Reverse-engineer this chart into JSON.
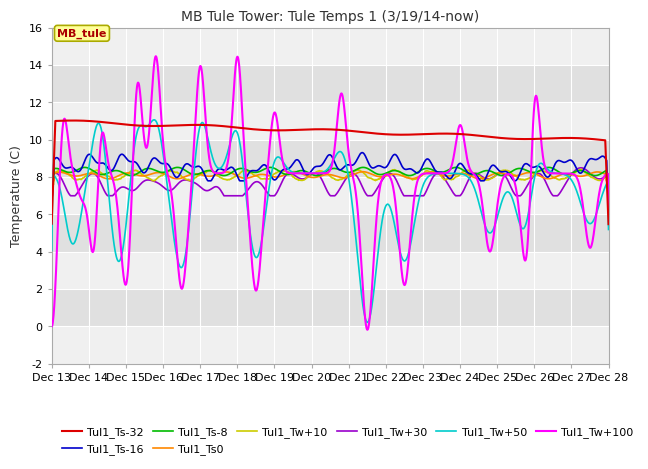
{
  "title": "MB Tule Tower: Tule Temps 1 (3/19/14-now)",
  "ylabel": "Temperature (C)",
  "ylim": [
    -2,
    16
  ],
  "yticks": [
    -2,
    0,
    2,
    4,
    6,
    8,
    10,
    12,
    14,
    16
  ],
  "x_start": 13,
  "x_end": 28,
  "xtick_positions": [
    13,
    14,
    15,
    16,
    17,
    18,
    19,
    20,
    21,
    22,
    23,
    24,
    25,
    26,
    27,
    28
  ],
  "xtick_labels": [
    "Dec 13",
    "Dec 14",
    "Dec 15",
    "Dec 16",
    "Dec 17",
    "Dec 18",
    "Dec 19",
    "Dec 20",
    "Dec 21",
    "Dec 22",
    "Dec 23",
    "Dec 24",
    "Dec 25",
    "Dec 26",
    "Dec 27",
    "Dec 28"
  ],
  "bg_color": "#ffffff",
  "plot_bg_light": "#f0f0f0",
  "plot_bg_dark": "#e0e0e0",
  "annotation_label": "MB_tule",
  "annotation_color": "#aa0000",
  "annotation_bg": "#ffff99",
  "annotation_edge": "#aaaa00",
  "series_order": [
    "Tul1_Ts-32",
    "Tul1_Ts-16",
    "Tul1_Ts-8",
    "Tul1_Ts0",
    "Tul1_Tw+10",
    "Tul1_Tw+30",
    "Tul1_Tw+50",
    "Tul1_Tw+100"
  ],
  "series": {
    "Tul1_Ts-32": {
      "color": "#dd0000",
      "lw": 1.5
    },
    "Tul1_Ts-16": {
      "color": "#0000cc",
      "lw": 1.2
    },
    "Tul1_Ts-8": {
      "color": "#00bb00",
      "lw": 1.2
    },
    "Tul1_Ts0": {
      "color": "#ff8800",
      "lw": 1.2
    },
    "Tul1_Tw+10": {
      "color": "#cccc00",
      "lw": 1.2
    },
    "Tul1_Tw+30": {
      "color": "#9900cc",
      "lw": 1.2
    },
    "Tul1_Tw+50": {
      "color": "#00cccc",
      "lw": 1.2
    },
    "Tul1_Tw+100": {
      "color": "#ff00ff",
      "lw": 1.5
    }
  }
}
